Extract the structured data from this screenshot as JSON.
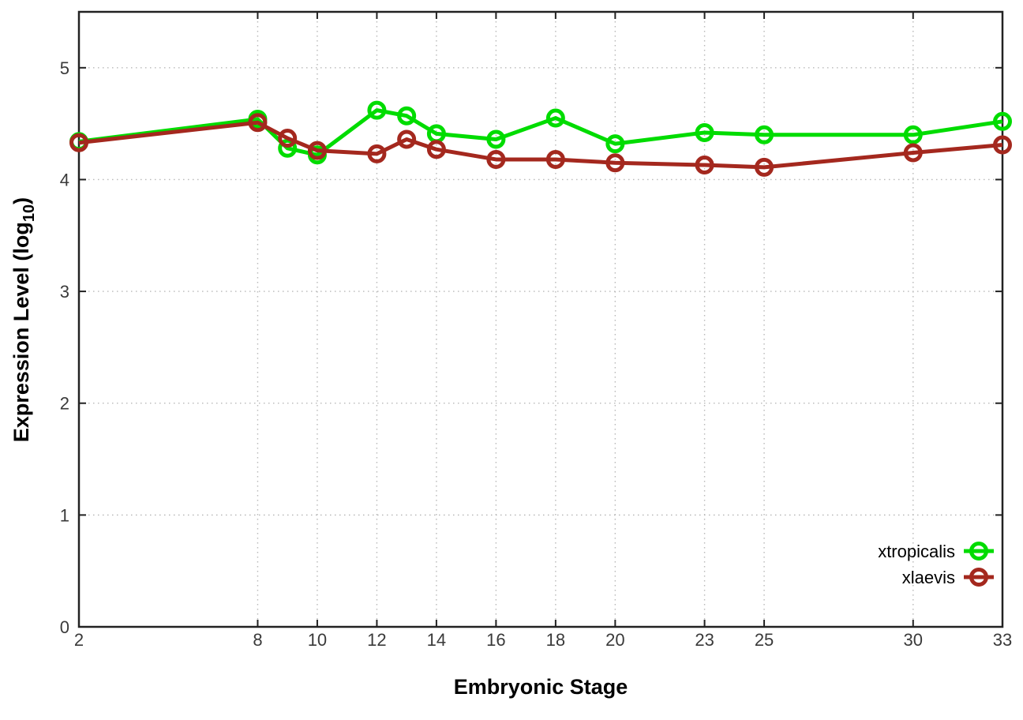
{
  "labels": {
    "x_title": "Embryonic Stage",
    "y_title_main": "Expression Level (log",
    "y_title_sub": "10",
    "y_title_close": ")"
  },
  "chart_data": {
    "type": "line",
    "title": "",
    "xlabel": "Embryonic Stage",
    "ylabel": "Expression Level (log10)",
    "x": [
      2,
      8,
      9,
      10,
      12,
      13,
      14,
      16,
      18,
      20,
      23,
      25,
      30,
      33
    ],
    "xticks": [
      2,
      8,
      10,
      12,
      14,
      16,
      18,
      20,
      23,
      25,
      30,
      33
    ],
    "yticks": [
      0,
      1,
      2,
      3,
      4,
      5
    ],
    "xlim": [
      2,
      33
    ],
    "ylim": [
      0,
      5.5
    ],
    "grid": true,
    "legend_position": "inside-bottom-right",
    "series": [
      {
        "name": "xtropicalis",
        "color": "#00dc00",
        "marker": "open-circle",
        "values": [
          4.34,
          4.54,
          4.28,
          4.22,
          4.62,
          4.57,
          4.41,
          4.36,
          4.55,
          4.32,
          4.42,
          4.4,
          4.4,
          4.52
        ]
      },
      {
        "name": "xlaevis",
        "color": "#a4281e",
        "marker": "open-circle",
        "values": [
          4.33,
          4.51,
          4.37,
          4.26,
          4.23,
          4.36,
          4.27,
          4.18,
          4.18,
          4.15,
          4.13,
          4.11,
          4.24,
          4.31
        ]
      }
    ],
    "colors": {
      "background": "#ffffff",
      "border": "#222222",
      "grid": "#b8b8b8",
      "tick_text": "#3a3a3a"
    }
  }
}
